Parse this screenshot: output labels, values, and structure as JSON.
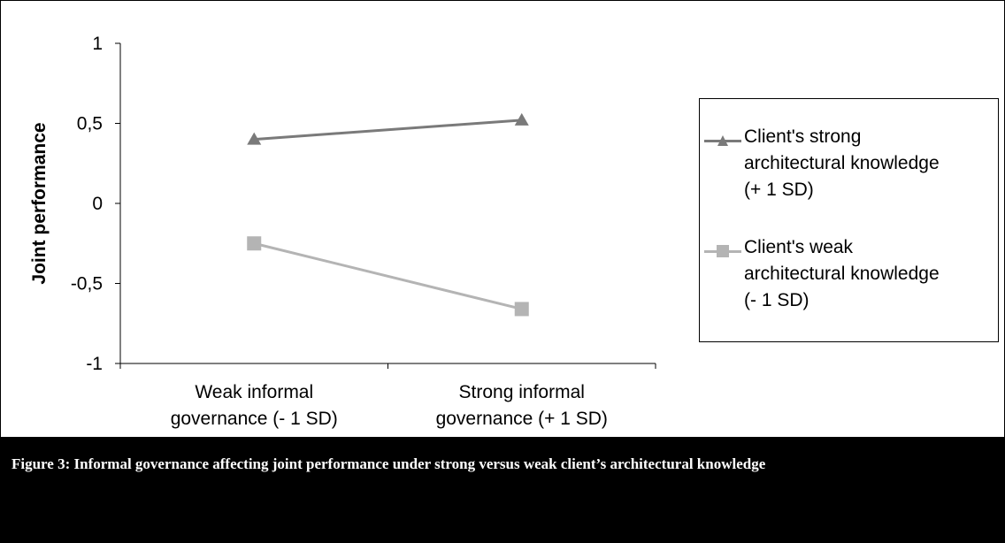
{
  "chart_data": {
    "type": "line",
    "categories": [
      "Weak informal governance (- 1 SD)",
      "Strong informal governance (+ 1 SD)"
    ],
    "category_lines": [
      [
        "Weak informal",
        "governance (- 1 SD)"
      ],
      [
        "Strong informal",
        "governance (+ 1 SD)"
      ]
    ],
    "series": [
      {
        "name": "Client's strong architectural knowledge (+ 1 SD)",
        "name_lines": [
          "Client's strong",
          "architectural knowledge",
          "(+ 1 SD)"
        ],
        "values": [
          0.4,
          0.52
        ],
        "color": "#7a7a7a",
        "marker": "triangle"
      },
      {
        "name": "Client's weak architectural knowledge (- 1 SD)",
        "name_lines": [
          "Client's weak",
          "architectural knowledge",
          "(- 1 SD)"
        ],
        "values": [
          -0.25,
          -0.66
        ],
        "color": "#b4b4b4",
        "marker": "square"
      }
    ],
    "ylabel": "Joint performance",
    "xlabel": "",
    "ylim": [
      -1,
      1
    ],
    "yticks": [
      1,
      0.5,
      0,
      -0.5,
      -1
    ],
    "ytick_labels": [
      "1",
      "0,5",
      "0",
      "-0,5",
      "-1"
    ],
    "grid": false,
    "legend_position": "right"
  },
  "caption": "Figure 3: Informal governance affecting joint performance under strong versus weak client’s architectural knowledge"
}
